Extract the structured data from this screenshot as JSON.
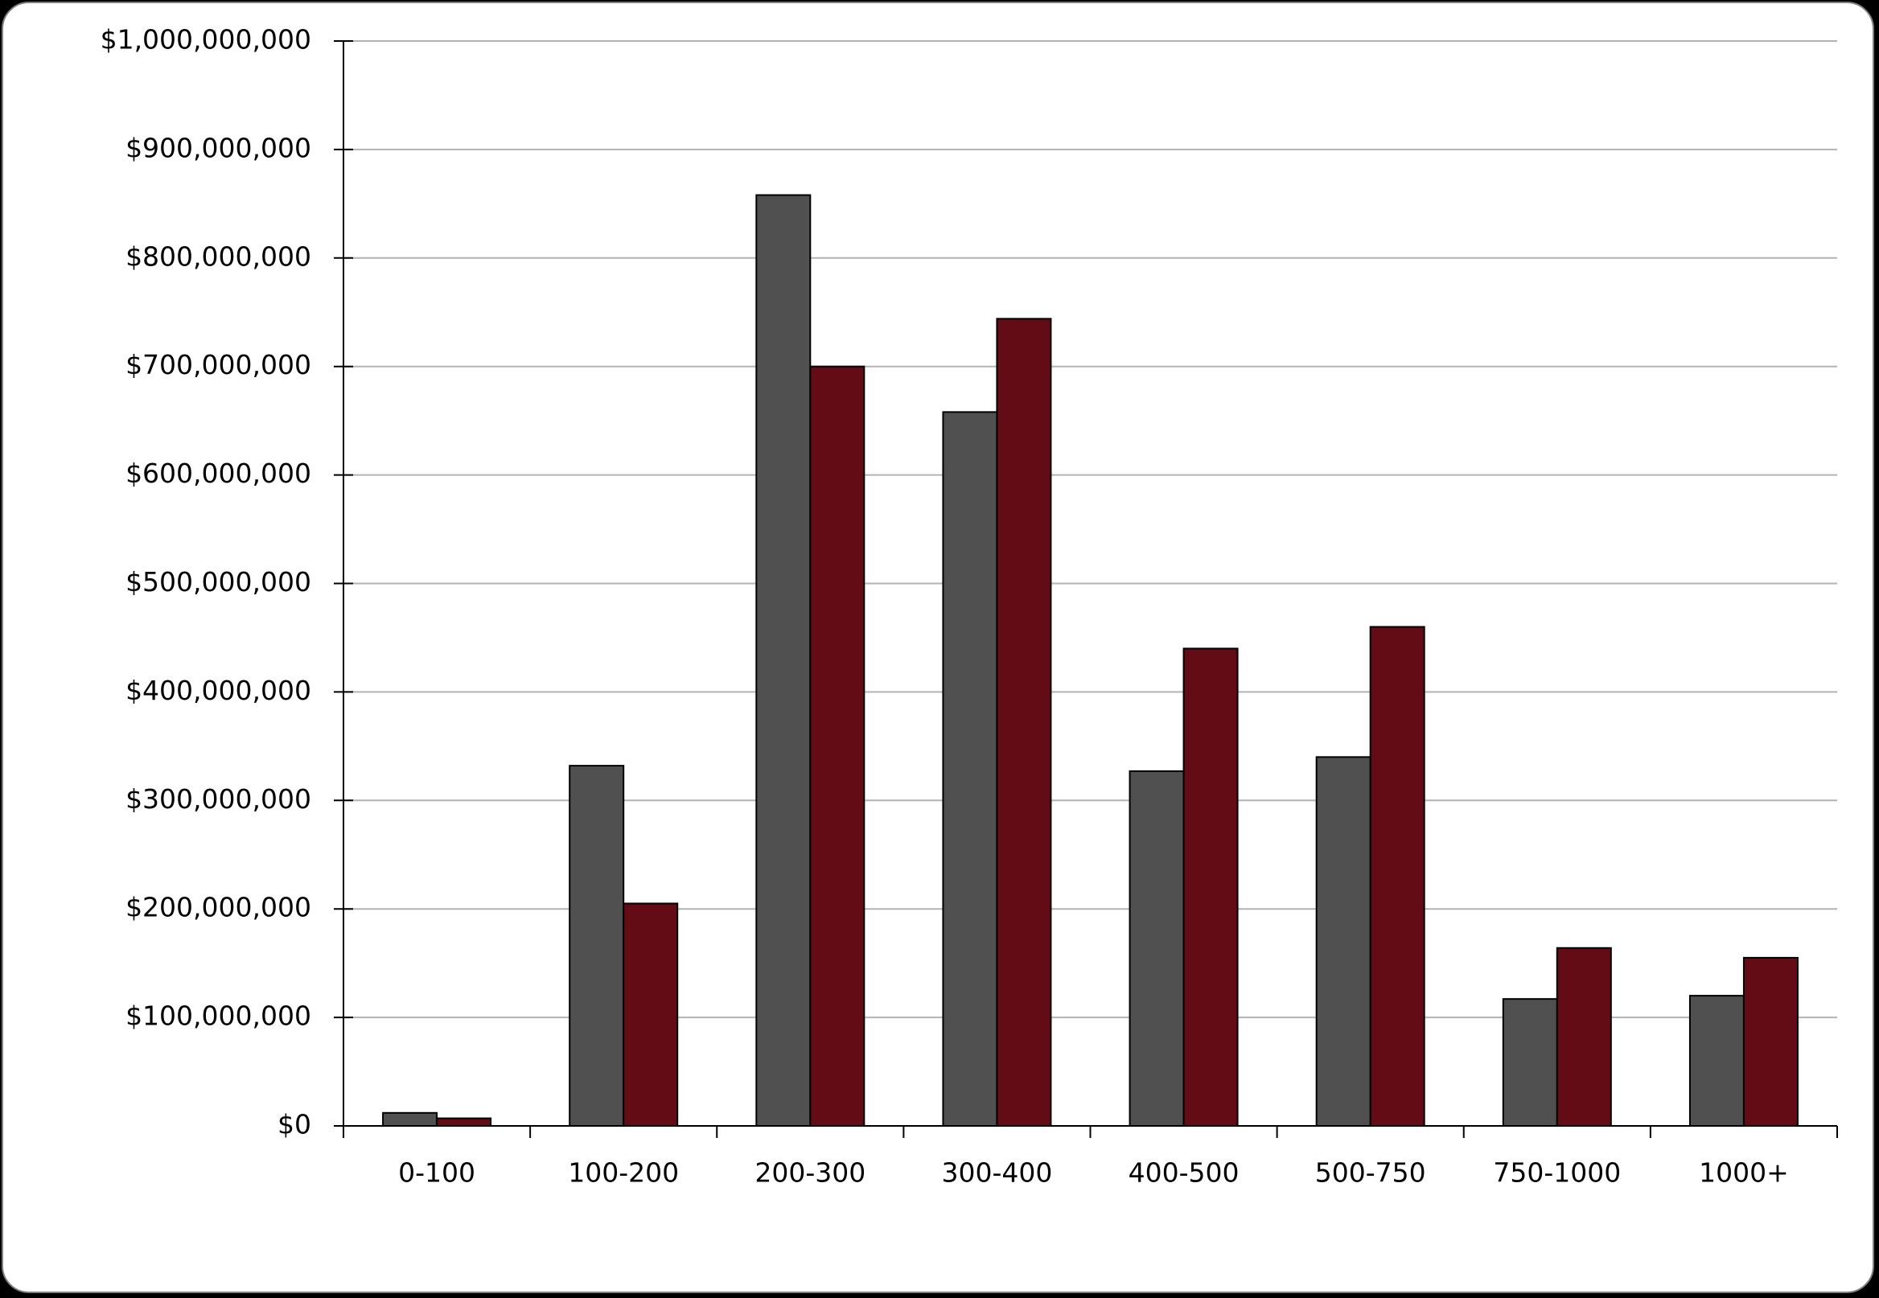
{
  "chart_data": {
    "type": "bar",
    "categories": [
      "0-100",
      "100-200",
      "200-300",
      "300-400",
      "400-500",
      "500-750",
      "750-1000",
      "1000+"
    ],
    "series": [
      {
        "color": "#505050",
        "values": [
          12000000,
          332000000,
          858000000,
          658000000,
          327000000,
          340000000,
          117000000,
          120000000
        ]
      },
      {
        "color": "#630c15",
        "values": [
          7000000,
          205000000,
          700000000,
          744000000,
          440000000,
          460000000,
          164000000,
          155000000
        ]
      }
    ],
    "ylim": [
      0,
      1000000000
    ],
    "yticks": [
      {
        "value": 0,
        "label": "$0"
      },
      {
        "value": 100000000,
        "label": "$100,000,000"
      },
      {
        "value": 200000000,
        "label": "$200,000,000"
      },
      {
        "value": 300000000,
        "label": "$300,000,000"
      },
      {
        "value": 400000000,
        "label": "$400,000,000"
      },
      {
        "value": 500000000,
        "label": "$500,000,000"
      },
      {
        "value": 600000000,
        "label": "$600,000,000"
      },
      {
        "value": 700000000,
        "label": "$700,000,000"
      },
      {
        "value": 800000000,
        "label": "$800,000,000"
      },
      {
        "value": 900000000,
        "label": "$900,000,000"
      },
      {
        "value": 1000000000,
        "label": "$1,000,000,000"
      }
    ],
    "grid": true
  }
}
